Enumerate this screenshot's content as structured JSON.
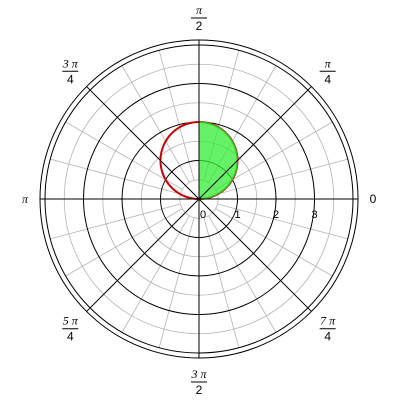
{
  "chart_data": {
    "type": "polar",
    "title": "",
    "radial_ticks": [
      "1",
      "2",
      "3"
    ],
    "radial_max": 4,
    "angle_labels": [
      {
        "angle_deg": 0,
        "num": "0",
        "den": ""
      },
      {
        "angle_deg": 45,
        "num": "π",
        "den": "4"
      },
      {
        "angle_deg": 90,
        "num": "π",
        "den": "2"
      },
      {
        "angle_deg": 135,
        "num": "3 π",
        "den": "4"
      },
      {
        "angle_deg": 180,
        "num": "π",
        "den": ""
      },
      {
        "angle_deg": 225,
        "num": "5 π",
        "den": "4"
      },
      {
        "angle_deg": 270,
        "num": "3 π",
        "den": "2"
      },
      {
        "angle_deg": 315,
        "num": "7 π",
        "den": "4"
      }
    ],
    "grid": true,
    "series": [
      {
        "curve": "r = 2 sin θ",
        "theta_range_deg": [
          0,
          180
        ],
        "color": "#cc0000",
        "kind": "line"
      },
      {
        "curve": "r = 2 sin θ",
        "theta_range_deg": [
          0,
          90
        ],
        "color": "#33ee33",
        "kind": "filled-region"
      }
    ]
  }
}
